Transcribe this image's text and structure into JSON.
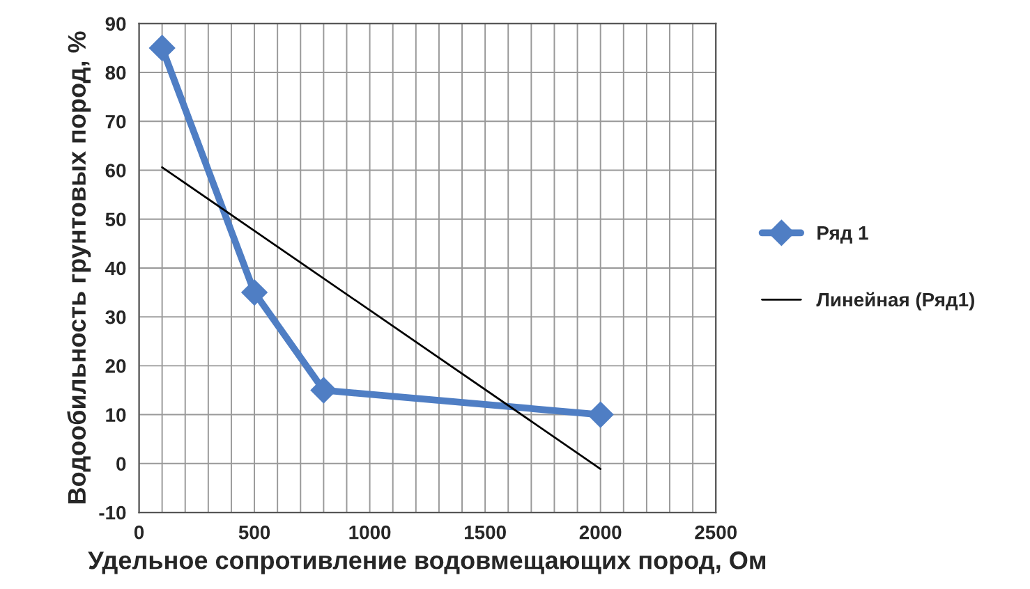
{
  "chart_data": {
    "type": "line",
    "xlabel": "Удельное сопротивление водовмещающих пород, Ом",
    "ylabel": "Водообильность грунтовых пород, %",
    "series": [
      {
        "name": "Ряд 1",
        "color": "#4f7ec4",
        "x": [
          100,
          500,
          800,
          2000
        ],
        "values": [
          85,
          35,
          15,
          10
        ],
        "marker": "diamond",
        "line_style": "solid"
      },
      {
        "name": "Линейная (Ряд1)",
        "color": "#000000",
        "x": [
          100,
          2000
        ],
        "values": [
          60.6,
          -1.1
        ],
        "marker": "none",
        "line_style": "solid"
      }
    ],
    "xlim": [
      0,
      2500
    ],
    "xticks": [
      0,
      {
        "value": 100,
        "label": null
      },
      {
        "value": 200,
        "label": null
      },
      {
        "value": 300,
        "label": null
      },
      {
        "value": 400,
        "label": null
      },
      500,
      {
        "value": 600,
        "label": null
      },
      {
        "value": 700,
        "label": null
      },
      {
        "value": 800,
        "label": null
      },
      {
        "value": 900,
        "label": null
      },
      1000,
      {
        "value": 1100,
        "label": null
      },
      {
        "value": 1200,
        "label": null
      },
      {
        "value": 1300,
        "label": null
      },
      {
        "value": 1400,
        "label": null
      },
      1500,
      {
        "value": 1600,
        "label": null
      },
      {
        "value": 1700,
        "label": null
      },
      {
        "value": 1800,
        "label": null
      },
      {
        "value": 1900,
        "label": null
      },
      2000,
      {
        "value": 2100,
        "label": null
      },
      {
        "value": 2200,
        "label": null
      },
      {
        "value": 2300,
        "label": null
      },
      {
        "value": 2400,
        "label": null
      },
      2500
    ],
    "ylim": [
      -10,
      90
    ],
    "yticks": [
      -10,
      0,
      10,
      20,
      30,
      40,
      50,
      60,
      70,
      80,
      90
    ],
    "grid": true,
    "legend": "right"
  }
}
